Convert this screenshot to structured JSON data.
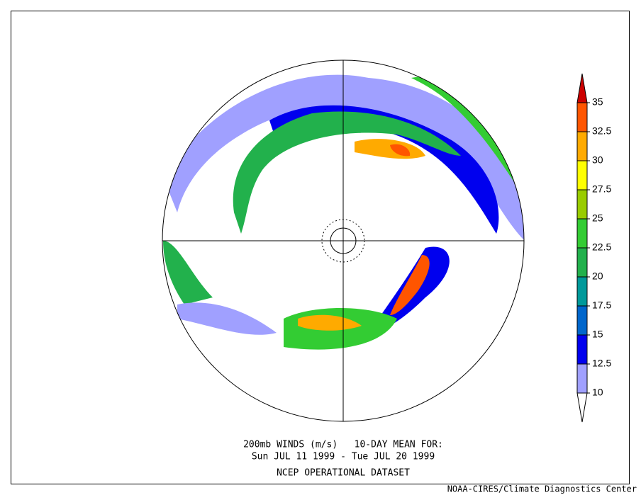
{
  "caption": {
    "line1": "200mb WINDS (m/s)   10-DAY MEAN FOR:",
    "line2": "Sun JUL 11 1999 - Tue JUL 20 1999",
    "line3": "NCEP OPERATIONAL DATASET"
  },
  "credit": "NOAA-CIRES/Climate Diagnostics Center",
  "colorbar": {
    "levels": [
      10,
      12.5,
      15,
      17.5,
      20,
      22.5,
      25,
      27.5,
      30,
      32.5,
      35
    ],
    "colors": [
      "#ffffff",
      "#a0a0ff",
      "#0000ee",
      "#0066cc",
      "#00999a",
      "#22b14c",
      "#33cc33",
      "#99cc00",
      "#ffff00",
      "#ffaa00",
      "#ff5500",
      "#cc0000"
    ]
  }
}
